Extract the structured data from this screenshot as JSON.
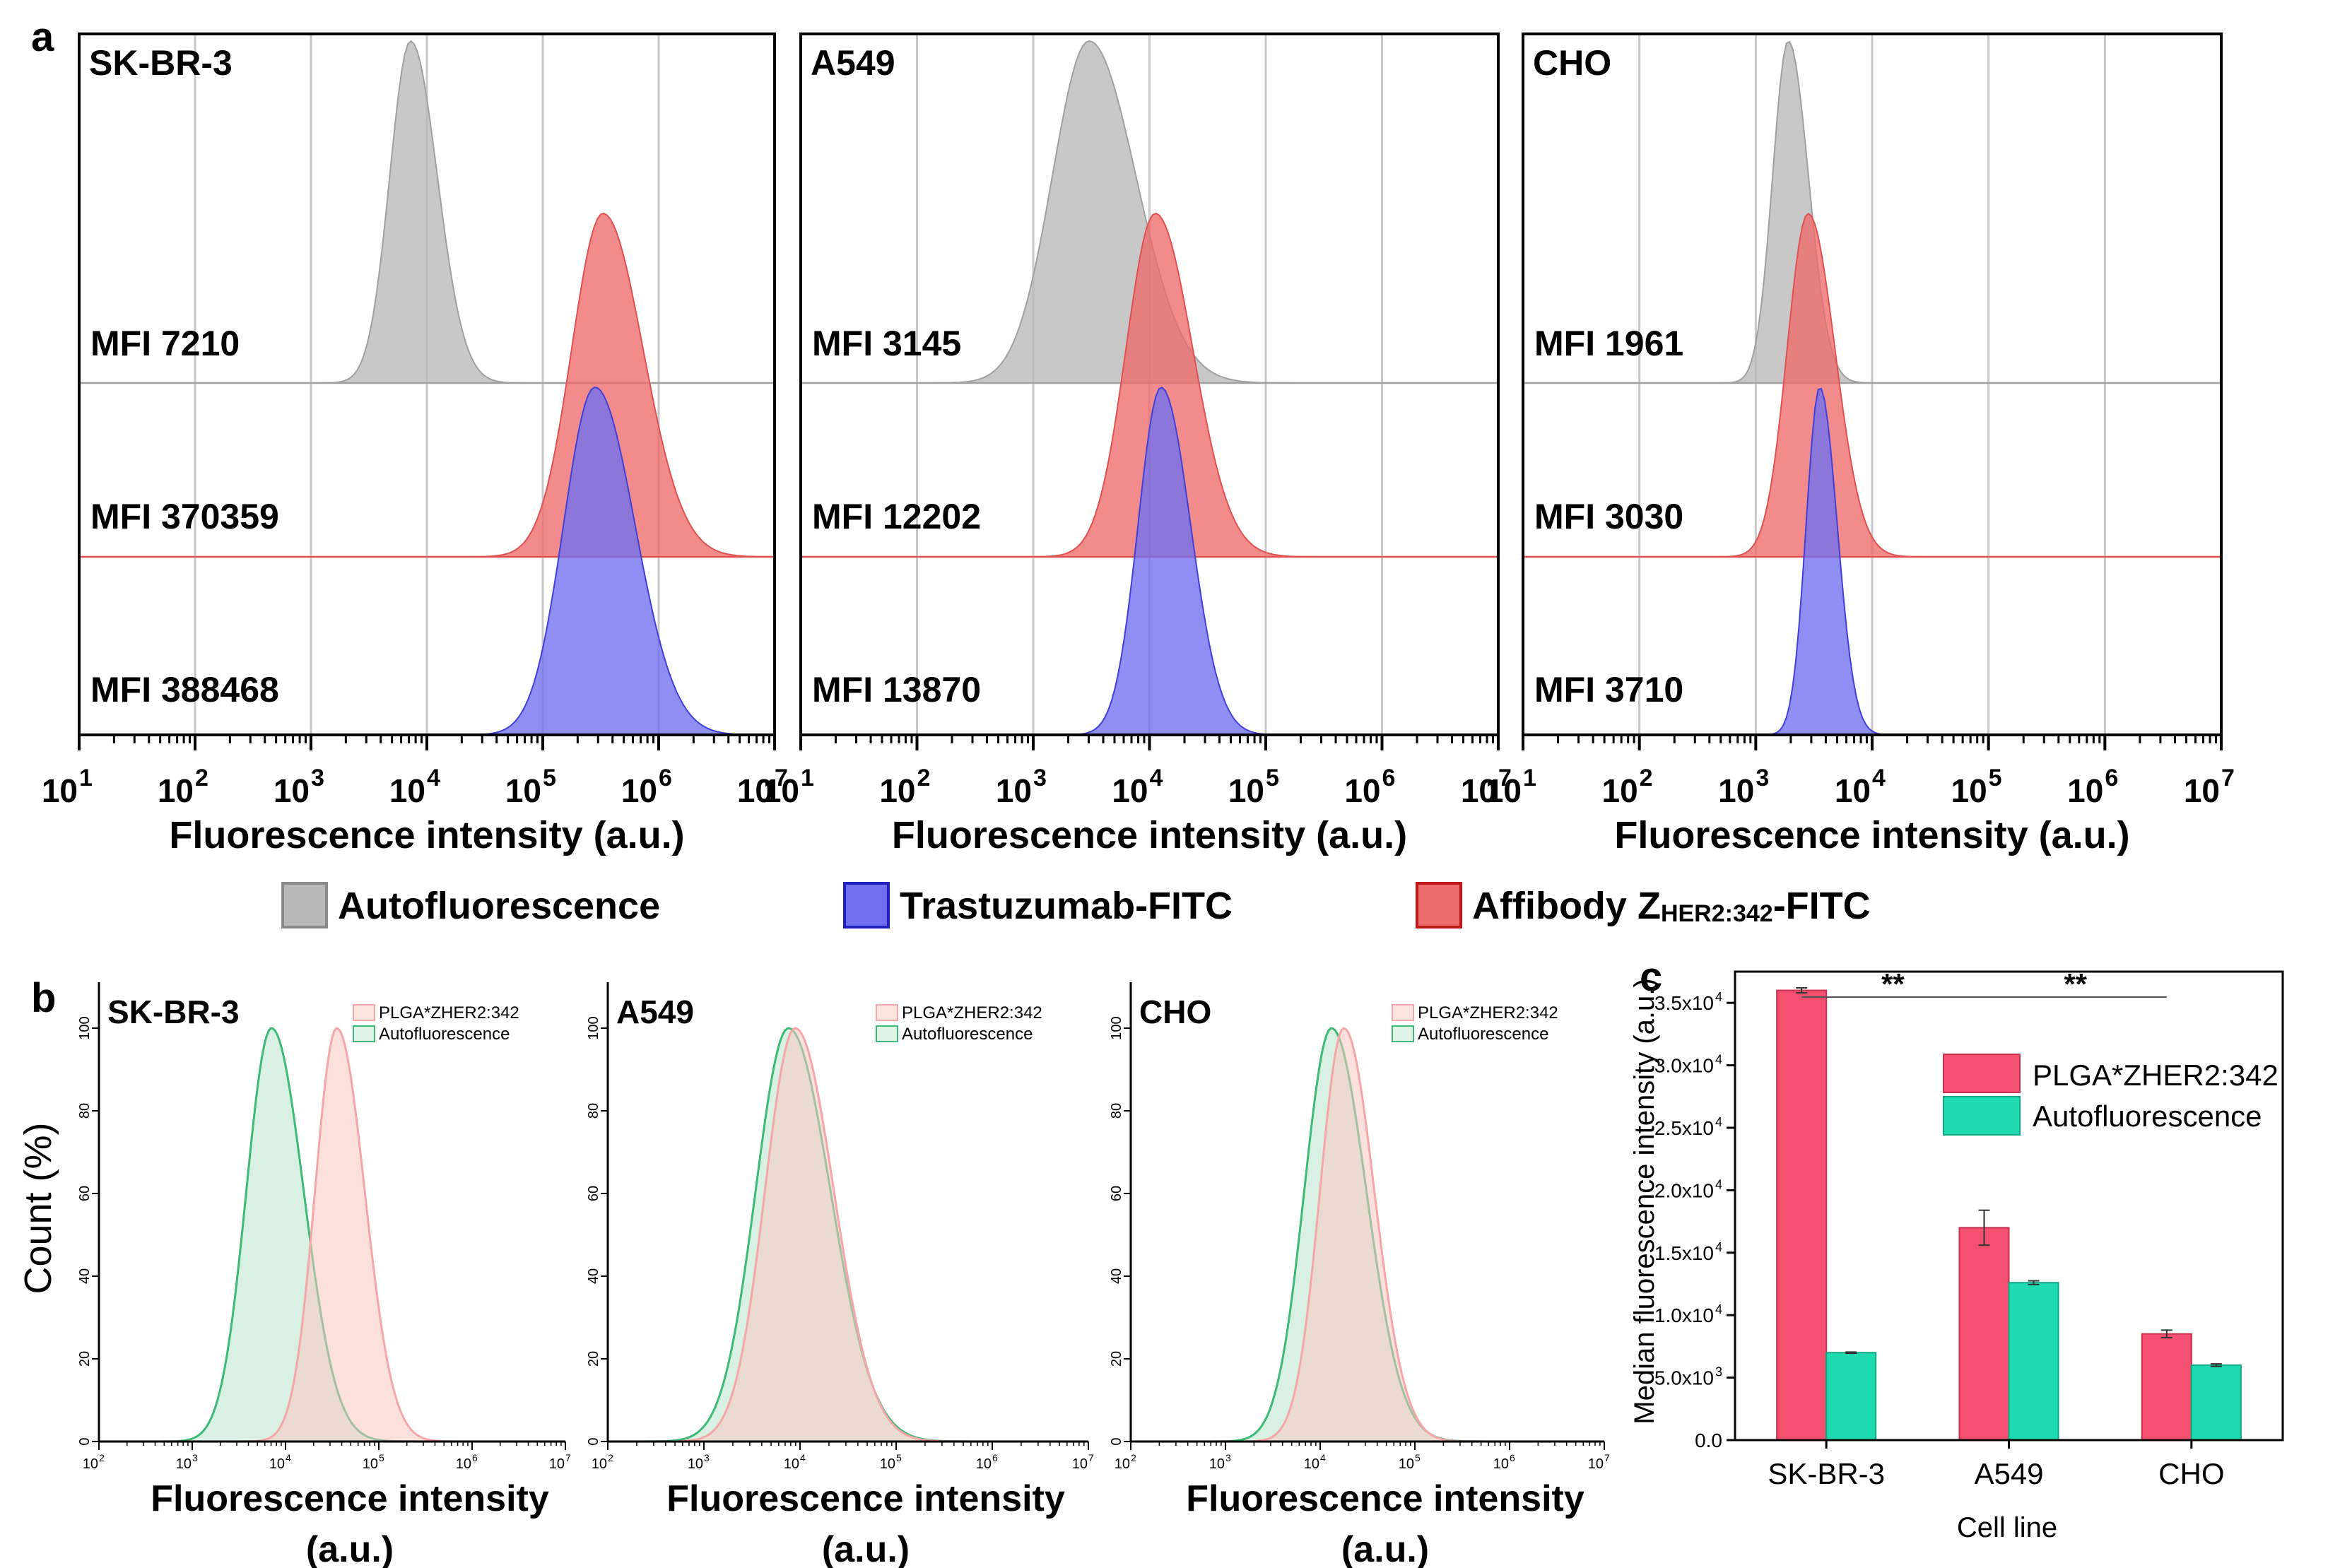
{
  "panel_labels": {
    "a": "a",
    "b": "b",
    "c": "c"
  },
  "colors": {
    "auto_gray": "#b8b8b8",
    "trast_blue": "#6f6ff0",
    "affi_red": "#ee6b6b",
    "plga_red": "#f5a7a7",
    "auto_green": "#3cba76",
    "bar_red": "#f5506f",
    "bar_teal": "#1fdbb2"
  },
  "chart_data": [
    {
      "id": "a",
      "type": "histogram",
      "x_axis": {
        "label": "Fluorescence intensity (a.u.)",
        "log_min": 1,
        "log_max": 7,
        "ticks": [
          1,
          2,
          3,
          4,
          5,
          6,
          7
        ]
      },
      "legend": [
        {
          "key": "auto",
          "label": "Autofluorescence"
        },
        {
          "key": "trast",
          "label": "Trastuzumab-FITC"
        },
        {
          "key": "affi",
          "label_prefix": "Affibody Z",
          "label_sub": "HER2:342",
          "label_suffix": "-FITC"
        }
      ],
      "panels": [
        {
          "cell": "SK-BR-3",
          "rows": [
            {
              "series": "auto",
              "mfi": "MFI 7210",
              "peak_log": 3.86,
              "width": 0.2
            },
            {
              "series": "affi",
              "mfi": "MFI 370359",
              "peak_log": 5.52,
              "width": 0.3
            },
            {
              "series": "trast",
              "mfi": "MFI 388468",
              "peak_log": 5.45,
              "width": 0.3
            }
          ]
        },
        {
          "cell": "A549",
          "rows": [
            {
              "series": "auto",
              "mfi": "MFI 3145",
              "peak_log": 3.48,
              "width": 0.35
            },
            {
              "series": "affi",
              "mfi": "MFI 12202",
              "peak_log": 4.05,
              "width": 0.28
            },
            {
              "series": "trast",
              "mfi": "MFI 13870",
              "peak_log": 4.1,
              "width": 0.22
            }
          ]
        },
        {
          "cell": "CHO",
          "rows": [
            {
              "series": "auto",
              "mfi": "MFI 1961",
              "peak_log": 3.28,
              "width": 0.15
            },
            {
              "series": "affi",
              "mfi": "MFI 3030",
              "peak_log": 3.45,
              "width": 0.2
            },
            {
              "series": "trast",
              "mfi": "MFI 3710",
              "peak_log": 3.55,
              "width": 0.13
            }
          ]
        }
      ]
    },
    {
      "id": "b",
      "type": "histogram",
      "y_axis": {
        "label": "Count (%)",
        "ticks": [
          0,
          20,
          40,
          60,
          80,
          100
        ]
      },
      "x_axis": {
        "label_line1": "Fluorescence intensity",
        "label_line2": "(a.u.)",
        "log_min": 2,
        "log_max": 7,
        "ticks": [
          2,
          3,
          4,
          5,
          6,
          7
        ]
      },
      "legend": [
        "PLGA*ZHER2:342",
        "Autofluorescence"
      ],
      "panels": [
        {
          "cell": "SK-BR-3",
          "plga_peak_log": 4.55,
          "plga_width": 0.26,
          "auto_peak_log": 3.85,
          "auto_width": 0.3
        },
        {
          "cell": "A549",
          "plga_peak_log": 3.95,
          "plga_width": 0.35,
          "auto_peak_log": 3.88,
          "auto_width": 0.38
        },
        {
          "cell": "CHO",
          "plga_peak_log": 4.25,
          "plga_width": 0.28,
          "auto_peak_log": 4.12,
          "auto_width": 0.32
        }
      ]
    },
    {
      "id": "c",
      "type": "bar",
      "title": "",
      "xlabel": "Cell line",
      "ylabel": "Median fluorescence intensity (a.u.)",
      "categories": [
        "SK-BR-3",
        "A549",
        "CHO"
      ],
      "ylim": [
        0,
        37500
      ],
      "yticks": [
        {
          "value": 0,
          "label": "0.0"
        },
        {
          "value": 5000,
          "label": "5.0x10",
          "exp": "3"
        },
        {
          "value": 10000,
          "label": "1.0x10",
          "exp": "4"
        },
        {
          "value": 15000,
          "label": "1.5x10",
          "exp": "4"
        },
        {
          "value": 20000,
          "label": "2.0x10",
          "exp": "4"
        },
        {
          "value": 25000,
          "label": "2.5x10",
          "exp": "4"
        },
        {
          "value": 30000,
          "label": "3.0x10",
          "exp": "4"
        },
        {
          "value": 35000,
          "label": "3.5x10",
          "exp": "4"
        }
      ],
      "series": [
        {
          "name": "PLGA*ZHER2:342",
          "values": [
            36000,
            17000,
            8500
          ],
          "errors": [
            200,
            1400,
            300
          ]
        },
        {
          "name": "Autofluorescence",
          "values": [
            7000,
            12600,
            6000
          ],
          "errors": [
            50,
            150,
            100
          ]
        }
      ],
      "significance": [
        {
          "from": 0,
          "to": 1,
          "label": "**"
        },
        {
          "from": 1,
          "to": 2,
          "label": "**"
        }
      ]
    }
  ]
}
